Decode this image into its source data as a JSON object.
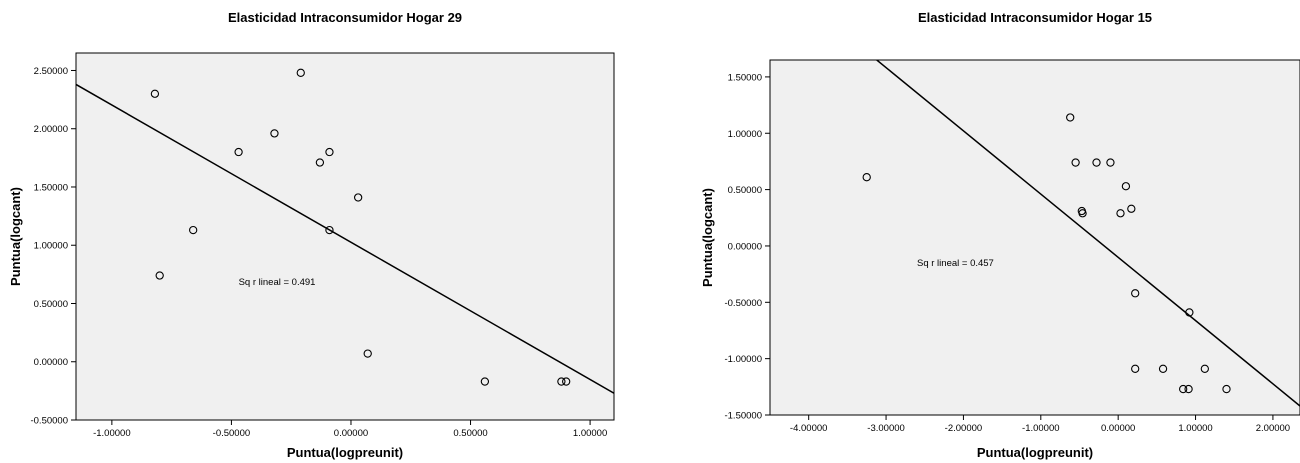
{
  "chart_data": [
    {
      "type": "scatter",
      "title": "Elasticidad Intraconsumidor Hogar 29",
      "xlabel": "Puntua(logpreunit)",
      "ylabel": "Puntua(logcant)",
      "xlim": [
        -1.15,
        1.1
      ],
      "ylim": [
        -0.5,
        2.65
      ],
      "xticks": [
        -1.0,
        -0.5,
        0.0,
        0.5,
        1.0
      ],
      "xtick_labels": [
        "-1.00000",
        "-0.50000",
        "0.00000",
        "0.50000",
        "1.00000"
      ],
      "yticks": [
        -0.5,
        0.0,
        0.5,
        1.0,
        1.5,
        2.0,
        2.5
      ],
      "ytick_labels": [
        "-0.50000",
        "0.00000",
        "0.50000",
        "1.00000",
        "1.50000",
        "2.00000",
        "2.50000"
      ],
      "points": [
        {
          "x": -0.82,
          "y": 2.3
        },
        {
          "x": -0.8,
          "y": 0.74
        },
        {
          "x": -0.66,
          "y": 1.13
        },
        {
          "x": -0.47,
          "y": 1.8
        },
        {
          "x": -0.32,
          "y": 1.96
        },
        {
          "x": -0.21,
          "y": 2.48
        },
        {
          "x": -0.13,
          "y": 1.71
        },
        {
          "x": -0.09,
          "y": 1.8
        },
        {
          "x": -0.09,
          "y": 1.13
        },
        {
          "x": 0.03,
          "y": 1.41
        },
        {
          "x": 0.07,
          "y": 0.07
        },
        {
          "x": 0.56,
          "y": -0.17
        },
        {
          "x": 0.88,
          "y": -0.17
        },
        {
          "x": 0.9,
          "y": -0.17
        }
      ],
      "fit_line": {
        "x": [
          -1.15,
          1.1
        ],
        "y": [
          2.38,
          -0.27
        ]
      },
      "annotation": {
        "text": "Sq r lineal = 0.491",
        "x": -0.47,
        "y": 0.66
      }
    },
    {
      "type": "scatter",
      "title": "Elasticidad Intraconsumidor Hogar 15",
      "xlabel": "Puntua(logpreunit)",
      "ylabel": "Puntua(logcant)",
      "xlim": [
        -4.5,
        2.35
      ],
      "ylim": [
        -1.5,
        1.65
      ],
      "xticks": [
        -4.0,
        -3.0,
        -2.0,
        -1.0,
        0.0,
        1.0,
        2.0
      ],
      "xtick_labels": [
        "-4.00000",
        "-3.00000",
        "-2.00000",
        "-1.00000",
        "0.00000",
        "1.00000",
        "2.00000"
      ],
      "yticks": [
        -1.5,
        -1.0,
        -0.5,
        0.0,
        0.5,
        1.0,
        1.5
      ],
      "ytick_labels": [
        "-1.50000",
        "-1.00000",
        "-0.50000",
        "0.00000",
        "0.50000",
        "1.00000",
        "1.50000"
      ],
      "points": [
        {
          "x": -3.25,
          "y": 0.61
        },
        {
          "x": -0.62,
          "y": 1.14
        },
        {
          "x": -0.55,
          "y": 0.74
        },
        {
          "x": -0.47,
          "y": 0.31
        },
        {
          "x": -0.46,
          "y": 0.29
        },
        {
          "x": -0.28,
          "y": 0.74
        },
        {
          "x": -0.1,
          "y": 0.74
        },
        {
          "x": 0.03,
          "y": 0.29
        },
        {
          "x": 0.1,
          "y": 0.53
        },
        {
          "x": 0.17,
          "y": 0.33
        },
        {
          "x": 0.22,
          "y": -0.42
        },
        {
          "x": 0.22,
          "y": -1.09
        },
        {
          "x": 0.58,
          "y": -1.09
        },
        {
          "x": 0.84,
          "y": -1.27
        },
        {
          "x": 0.91,
          "y": -1.27
        },
        {
          "x": 0.92,
          "y": -0.59
        },
        {
          "x": 1.12,
          "y": -1.09
        },
        {
          "x": 1.4,
          "y": -1.27
        }
      ],
      "fit_line": {
        "x": [
          -3.12,
          2.35
        ],
        "y": [
          1.65,
          -1.42
        ]
      },
      "annotation": {
        "text": "Sq r lineal = 0.457",
        "x": -2.6,
        "y": -0.18
      }
    }
  ]
}
